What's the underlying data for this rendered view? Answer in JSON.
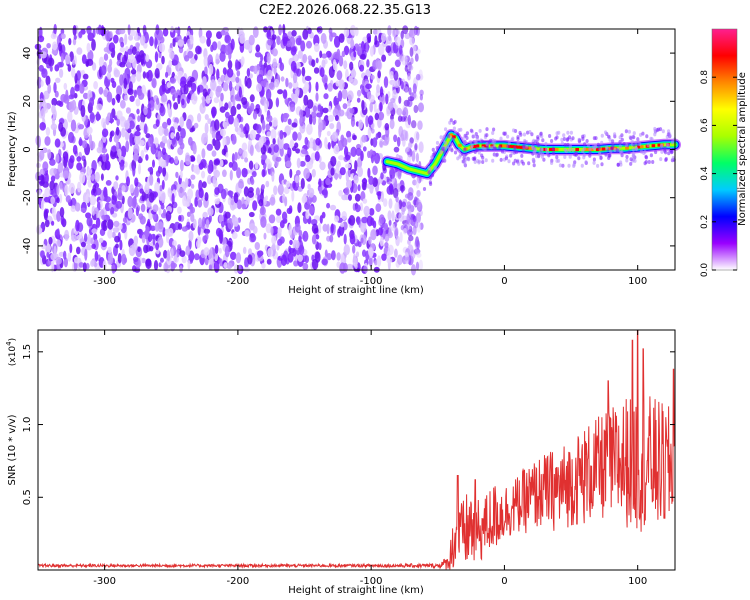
{
  "title": "C2E2.2026.068.22.35.G13",
  "chart_data": [
    {
      "type": "heatmap",
      "title": "C2E2.2026.068.22.35.G13",
      "xlabel": "Height of straight line (km)",
      "ylabel": "Frequency (Hz)",
      "xlim": [
        -350,
        128
      ],
      "ylim": [
        -50,
        50
      ],
      "x_ticks": [
        -300,
        -200,
        -100,
        0,
        100
      ],
      "x_tick_labels": [
        "-300",
        "-200",
        "-100",
        "0",
        "100"
      ],
      "y_ticks": [
        -40,
        -20,
        0,
        20,
        40
      ],
      "y_tick_labels": [
        "-40",
        "-20",
        "0",
        "20",
        "40"
      ],
      "noise_region_x": [
        -350,
        -62
      ],
      "signal_track": {
        "x": [
          -88,
          -80,
          -72,
          -65,
          -58,
          -52,
          -47,
          -43,
          -40,
          -37,
          -34,
          -30,
          -25,
          -20,
          -10,
          0,
          10,
          20,
          30,
          40,
          50,
          60,
          70,
          80,
          90,
          100,
          110,
          120,
          128
        ],
        "freq": [
          -5,
          -6,
          -8,
          -9,
          -10,
          -6,
          -1,
          3,
          6,
          5,
          2,
          0,
          1,
          1.5,
          1.5,
          1.5,
          1,
          0.5,
          0,
          0,
          0,
          0,
          0,
          0.5,
          0.5,
          1,
          1.5,
          2,
          2
        ]
      },
      "colorbar": {
        "label": "Normalized spectral amplitude",
        "range": [
          0,
          1
        ],
        "ticks": [
          0.0,
          0.2,
          0.4,
          0.6,
          0.8
        ],
        "tick_labels": [
          "0.0",
          "0.2",
          "0.4",
          "0.6",
          "0.8"
        ],
        "colors": [
          "#ffffff",
          "#9900ff",
          "#0000ff",
          "#00ccff",
          "#00ff66",
          "#aaff00",
          "#ffff00",
          "#ff8800",
          "#ff0000",
          "#ff1f8f"
        ]
      }
    },
    {
      "type": "line",
      "xlabel": "Height of straight line (km)",
      "ylabel": "SNR (10 * v/v)",
      "y_multiplier": "(x10",
      "y_multiplier_exp": "4",
      "y_multiplier_close": ")",
      "xlim": [
        -350,
        128
      ],
      "ylim": [
        0,
        1.65
      ],
      "x_ticks": [
        -300,
        -200,
        -100,
        0,
        100
      ],
      "x_tick_labels": [
        "-300",
        "-200",
        "-100",
        "0",
        "100"
      ],
      "y_ticks": [
        0.5,
        1.0,
        1.5
      ],
      "y_tick_labels": [
        "0.5",
        "1.0",
        "1.5"
      ],
      "series": [
        {
          "name": "SNR",
          "color": "#e03030",
          "x": [
            -350,
            -300,
            -250,
            -200,
            -150,
            -100,
            -50,
            -42,
            -38,
            -30,
            -25,
            -20,
            -15,
            -10,
            0,
            10,
            20,
            30,
            40,
            50,
            60,
            70,
            80,
            90,
            100,
            110,
            120,
            128
          ],
          "baseline": [
            0.03,
            0.03,
            0.03,
            0.03,
            0.03,
            0.03,
            0.03,
            0.05,
            0.2,
            0.25,
            0.3,
            0.25,
            0.3,
            0.35,
            0.4,
            0.45,
            0.5,
            0.55,
            0.55,
            0.6,
            0.65,
            0.7,
            0.72,
            0.75,
            0.75,
            0.75,
            0.7,
            0.7
          ],
          "spread": [
            0.01,
            0.01,
            0.01,
            0.01,
            0.01,
            0.01,
            0.015,
            0.05,
            0.2,
            0.25,
            0.3,
            0.25,
            0.2,
            0.25,
            0.2,
            0.2,
            0.25,
            0.25,
            0.3,
            0.3,
            0.35,
            0.35,
            0.4,
            0.45,
            0.5,
            0.45,
            0.45,
            0.4
          ],
          "peaks": [
            {
              "x": -35,
              "y": 0.65
            },
            {
              "x": -22,
              "y": 0.62
            },
            {
              "x": 78,
              "y": 1.3
            },
            {
              "x": 96,
              "y": 1.58
            },
            {
              "x": 100,
              "y": 1.65
            },
            {
              "x": 104,
              "y": 1.52
            },
            {
              "x": 127,
              "y": 1.38
            }
          ]
        }
      ]
    }
  ]
}
